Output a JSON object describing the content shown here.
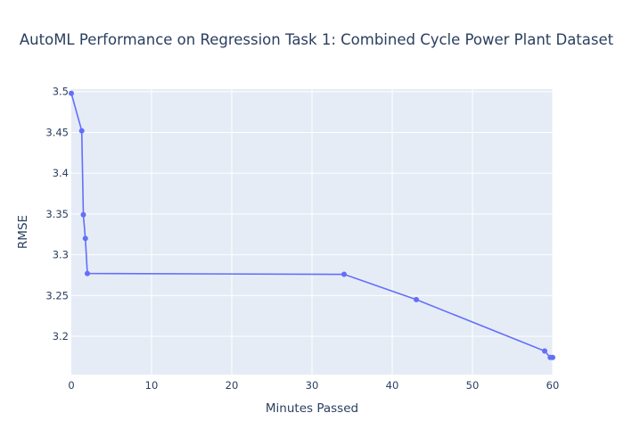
{
  "chart_data": {
    "type": "line",
    "title": "AutoML Performance on Regression Task 1: Combined Cycle Power Plant Dataset",
    "xlabel": "Minutes Passed",
    "ylabel": "RMSE",
    "xlim": [
      0,
      60
    ],
    "ylim": [
      3.153,
      3.503
    ],
    "xticks": [
      0,
      10,
      20,
      30,
      40,
      50,
      60
    ],
    "yticks": [
      3.2,
      3.25,
      3.3,
      3.35,
      3.4,
      3.45,
      3.5
    ],
    "xtick_labels": [
      "0",
      "10",
      "20",
      "30",
      "40",
      "50",
      "60"
    ],
    "ytick_labels": [
      "3.2",
      "3.25",
      "3.3",
      "3.35",
      "3.4",
      "3.45",
      "3.5"
    ],
    "grid": true,
    "colors": {
      "line": "#636efa",
      "plot_bg": "#e5ecf6",
      "grid": "#ffffff",
      "text": "#2a3f5f"
    },
    "series": [
      {
        "x": [
          0,
          1.3,
          1.5,
          1.75,
          2.0,
          34.0,
          43.0,
          59.0,
          59.7,
          60.0
        ],
        "y": [
          3.498,
          3.452,
          3.349,
          3.32,
          3.277,
          3.276,
          3.245,
          3.182,
          3.174,
          3.174
        ]
      }
    ]
  }
}
